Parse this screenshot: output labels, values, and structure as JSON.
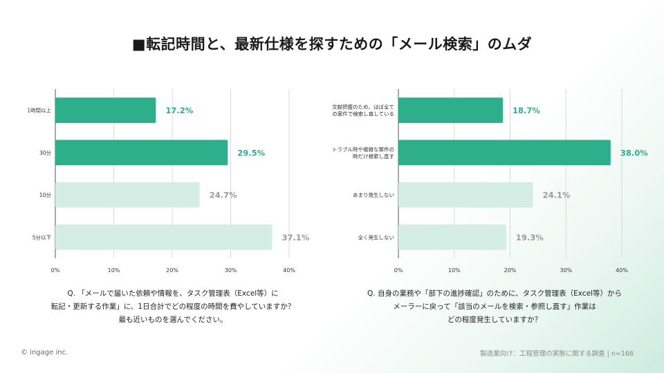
{
  "title": "■転記時間と、最新仕様を探すための「メール検索」のムダ",
  "colors": {
    "highlight": "#2fae8c",
    "muted": "#d4eee6",
    "grid": "#d9d9d9",
    "axis": "#555555",
    "highlight_label": "#2fae8c",
    "muted_label": "#9c9c9c"
  },
  "chart_data": [
    {
      "type": "bar",
      "orientation": "horizontal",
      "categories": [
        "1時間以上",
        "30分",
        "10分",
        "5分以下"
      ],
      "values": [
        17.2,
        29.5,
        24.7,
        37.1
      ],
      "value_labels": [
        "17.2%",
        "29.5%",
        "24.7%",
        "37.1%"
      ],
      "highlighted": [
        true,
        true,
        false,
        false
      ],
      "xlim": [
        0,
        40
      ],
      "xticks": [
        "0%",
        "10%",
        "20%",
        "30%",
        "40%"
      ],
      "xtick_values": [
        0,
        10,
        20,
        30,
        40
      ],
      "grid": true
    },
    {
      "type": "bar",
      "orientation": "horizontal",
      "categories": [
        [
          "文献把握のため、ほぼ全て",
          "の案件で検索し直している"
        ],
        [
          "トラブル時や複雑な案件の",
          "時だけ検索し直す"
        ],
        [
          "あまり発生しない"
        ],
        [
          "全く発生しない"
        ]
      ],
      "values": [
        18.7,
        38.0,
        24.1,
        19.3
      ],
      "value_labels": [
        "18.7%",
        "38.0%",
        "24.1%",
        "19.3%"
      ],
      "highlighted": [
        true,
        true,
        false,
        false
      ],
      "xlim": [
        0,
        40
      ],
      "xticks": [
        "0%",
        "10%",
        "20%",
        "30%",
        "40%"
      ],
      "xtick_values": [
        0,
        10,
        20,
        30,
        40
      ],
      "grid": true
    }
  ],
  "captions": [
    [
      "Q. 「メールで届いた依頼や情報を、タスク管理表（Excel等）に",
      "転記・更新する作業」に、1日合計でどの程度の時間を費やしていますか？",
      "最も近いものを選んでください。"
    ],
    [
      "Q. 自身の業務や「部下の進捗確認」のために、タスク管理表（Excel等）から",
      "メーラーに戻って「該当のメールを検索・参照し直す」作業は",
      "どの程度発生していますか？"
    ]
  ],
  "footer": {
    "copyright": "© ingage inc.",
    "source": "製造業向け：工程管理の実態に関する調査 | n=166"
  }
}
